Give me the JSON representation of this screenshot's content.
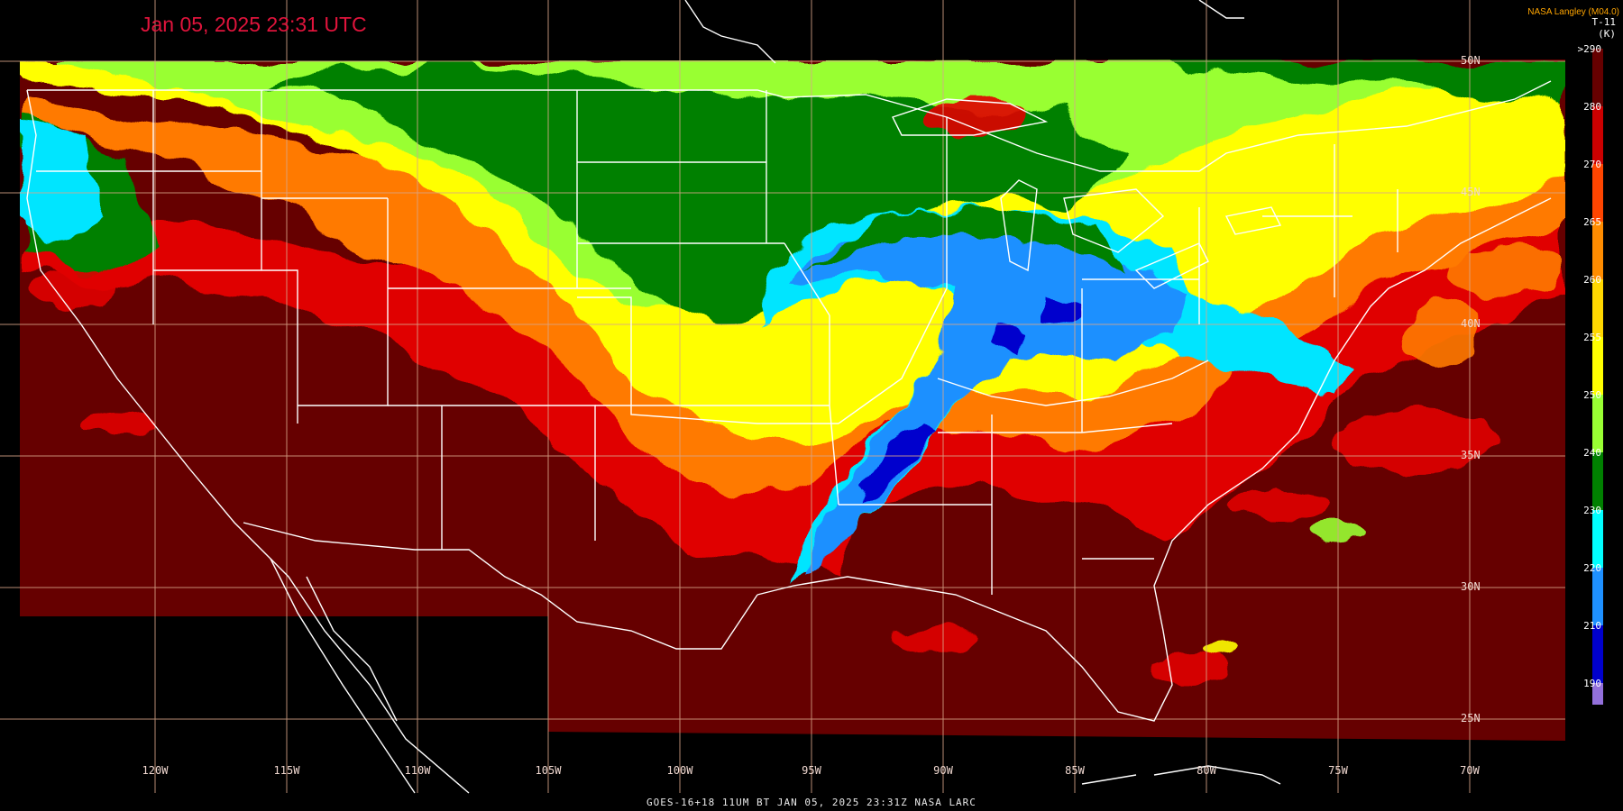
{
  "header": {
    "timestamp": "Jan 05, 2025 23:31 UTC",
    "credit": "NASA Langley (M04.0)"
  },
  "footer": {
    "caption": "GOES-16+18  11UM BT   JAN 05, 2025 23:31Z   NASA LARC"
  },
  "colorbar": {
    "title_lines": [
      "T-11",
      "(K)"
    ],
    "ticks": [
      ">290",
      "280",
      "270",
      "265",
      "260",
      "255",
      "250",
      "240",
      "230",
      "220",
      "210",
      "190"
    ],
    "colors": [
      "#660000",
      "#cc0000",
      "#ff4500",
      "#ff8c00",
      "#ffd700",
      "#ffff00",
      "#99ff33",
      "#008000",
      "#00ffff",
      "#1e90ff",
      "#0000cd",
      "#9370db"
    ]
  },
  "longitude_labels": [
    "120W",
    "115W",
    "110W",
    "105W",
    "100W",
    "95W",
    "90W",
    "85W",
    "80W",
    "75W",
    "70W"
  ],
  "latitude_labels": [
    "50N",
    "45N",
    "40N",
    "35N",
    "30N",
    "25N"
  ],
  "palette": {
    "very_warm": "#660000",
    "warm": "#e00000",
    "orange": "#ff7a00",
    "yellow": "#ffff00",
    "light_green": "#99ff33",
    "green": "#008000",
    "cyan": "#00e5ff",
    "blue": "#1e90ff",
    "deep_blue": "#0000cd",
    "grid": "#d8a68a",
    "borders": "#ffffff"
  }
}
